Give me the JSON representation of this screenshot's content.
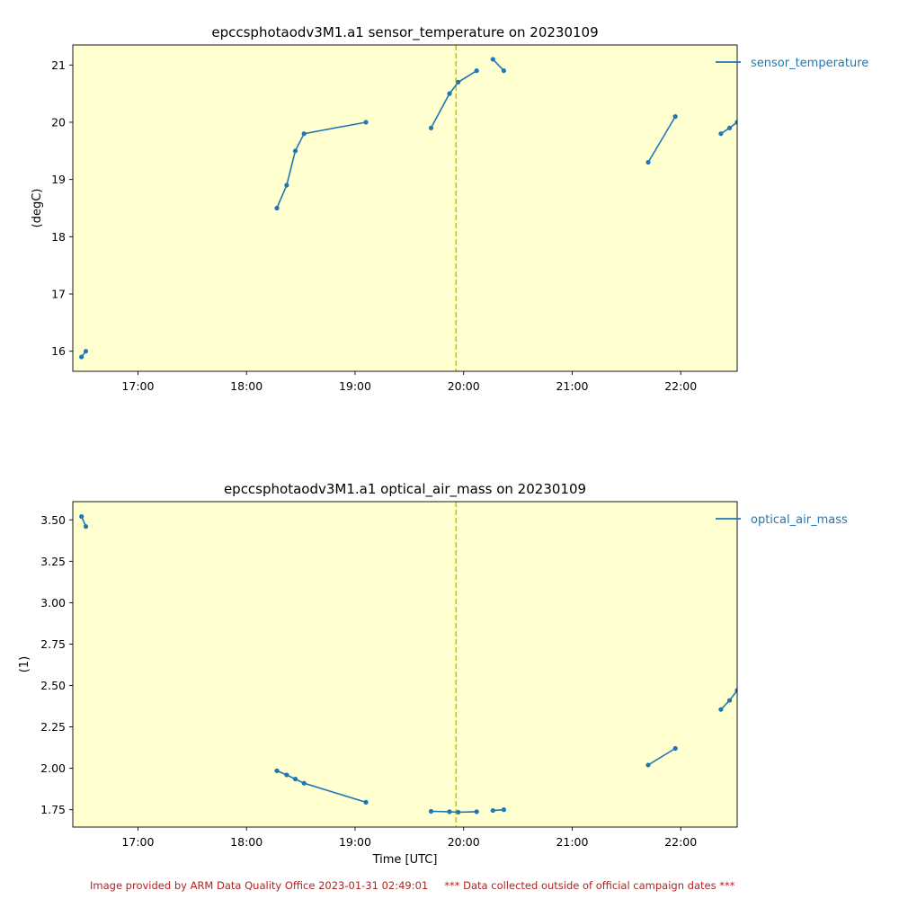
{
  "chart_data": [
    {
      "type": "line",
      "title": "epccsphotaodv3M1.a1 sensor_temperature on 20230109",
      "xlabel": "",
      "ylabel": "(degC)",
      "x_unit": "hour_utc",
      "xlim": [
        16.4,
        22.52
      ],
      "ylim": [
        15.65,
        21.35
      ],
      "x_ticks": [
        17,
        18,
        19,
        20,
        21,
        22
      ],
      "x_tick_labels": [
        "17:00",
        "18:00",
        "19:00",
        "20:00",
        "21:00",
        "22:00"
      ],
      "y_ticks": [
        16,
        17,
        18,
        19,
        20,
        21
      ],
      "y_tick_labels": [
        "16",
        "17",
        "18",
        "19",
        "20",
        "21"
      ],
      "background_color": "#ffffd0",
      "marker_line_x": 19.93,
      "marker_line_color": "#c8c800",
      "legend_placement": "outside-top-right",
      "series": [
        {
          "name": "sensor_temperature",
          "color": "#1f77b4",
          "segments": [
            [
              [
                16.48,
                15.9
              ],
              [
                16.52,
                16.0
              ]
            ],
            [
              [
                18.28,
                18.5
              ],
              [
                18.37,
                18.9
              ],
              [
                18.45,
                19.5
              ],
              [
                18.53,
                19.8
              ],
              [
                19.1,
                20.0
              ]
            ],
            [
              [
                19.7,
                19.9
              ],
              [
                19.87,
                20.5
              ],
              [
                19.95,
                20.7
              ],
              [
                20.12,
                20.9
              ]
            ],
            [
              [
                20.27,
                21.1
              ],
              [
                20.37,
                20.9
              ]
            ],
            [
              [
                21.7,
                19.3
              ],
              [
                21.95,
                20.1
              ]
            ],
            [
              [
                22.37,
                19.8
              ],
              [
                22.45,
                19.9
              ],
              [
                22.52,
                20.0
              ]
            ]
          ]
        }
      ]
    },
    {
      "type": "line",
      "title": "epccsphotaodv3M1.a1 optical_air_mass on 20230109",
      "xlabel": "Time [UTC]",
      "ylabel": "(1)",
      "x_unit": "hour_utc",
      "xlim": [
        16.4,
        22.52
      ],
      "ylim": [
        1.645,
        3.61
      ],
      "x_ticks": [
        17,
        18,
        19,
        20,
        21,
        22
      ],
      "x_tick_labels": [
        "17:00",
        "18:00",
        "19:00",
        "20:00",
        "21:00",
        "22:00"
      ],
      "y_ticks": [
        1.75,
        2.0,
        2.25,
        2.5,
        2.75,
        3.0,
        3.25,
        3.5
      ],
      "y_tick_labels": [
        "1.75",
        "2.00",
        "2.25",
        "2.50",
        "2.75",
        "3.00",
        "3.25",
        "3.50"
      ],
      "background_color": "#ffffd0",
      "marker_line_x": 19.93,
      "marker_line_color": "#c8c800",
      "legend_placement": "outside-top-right",
      "series": [
        {
          "name": "optical_air_mass",
          "color": "#1f77b4",
          "segments": [
            [
              [
                16.48,
                3.52
              ],
              [
                16.52,
                3.46
              ]
            ],
            [
              [
                18.28,
                1.985
              ],
              [
                18.37,
                1.96
              ],
              [
                18.45,
                1.935
              ],
              [
                18.53,
                1.91
              ],
              [
                19.1,
                1.795
              ]
            ],
            [
              [
                19.7,
                1.74
              ],
              [
                19.87,
                1.738
              ],
              [
                19.95,
                1.735
              ],
              [
                20.12,
                1.738
              ]
            ],
            [
              [
                20.27,
                1.745
              ],
              [
                20.37,
                1.75
              ]
            ],
            [
              [
                21.7,
                2.02
              ],
              [
                21.95,
                2.12
              ]
            ],
            [
              [
                22.37,
                2.355
              ],
              [
                22.45,
                2.41
              ],
              [
                22.52,
                2.47
              ]
            ]
          ]
        }
      ]
    }
  ],
  "footer": {
    "credit": "Image provided by ARM Data Quality Office 2023-01-31 02:49:01",
    "notice": "*** Data collected outside of official campaign dates ***"
  }
}
